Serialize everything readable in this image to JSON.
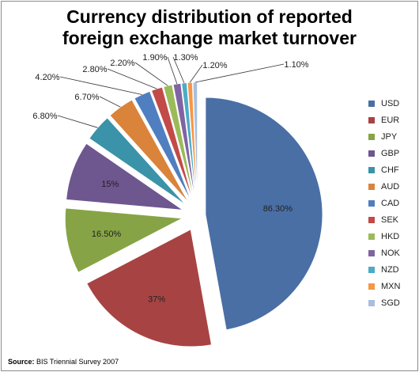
{
  "chart_data": {
    "type": "pie",
    "title_lines": [
      "Currency distribution of reported",
      "foreign exchange market turnover"
    ],
    "slices": [
      {
        "name": "USD",
        "value": 86.3,
        "label": "86.30%",
        "color": "#4A6FA5"
      },
      {
        "name": "EUR",
        "value": 37,
        "label": "37%",
        "color": "#A84343"
      },
      {
        "name": "JPY",
        "value": 16.5,
        "label": "16.50%",
        "color": "#86A445"
      },
      {
        "name": "GBP",
        "value": 15,
        "label": "15%",
        "color": "#6E568F"
      },
      {
        "name": "CHF",
        "value": 6.8,
        "label": "6.80%",
        "color": "#3A93A8"
      },
      {
        "name": "AUD",
        "value": 6.7,
        "label": "6.70%",
        "color": "#D9843A"
      },
      {
        "name": "CAD",
        "value": 4.2,
        "label": "4.20%",
        "color": "#4F7FC0"
      },
      {
        "name": "SEK",
        "value": 2.8,
        "label": "2.80%",
        "color": "#C24A47"
      },
      {
        "name": "HKD",
        "value": 2.2,
        "label": "2.20%",
        "color": "#9BBB59"
      },
      {
        "name": "NOK",
        "value": 1.9,
        "label": "1.90%",
        "color": "#8064A2"
      },
      {
        "name": "NZD",
        "value": 1.3,
        "label": "1.30%",
        "color": "#4BACC6"
      },
      {
        "name": "MXN",
        "value": 1.2,
        "label": "1.20%",
        "color": "#F79646"
      },
      {
        "name": "SGD",
        "value": 1.1,
        "label": "1.10%",
        "color": "#A9BEDC"
      }
    ],
    "legend_position": "right"
  },
  "source": {
    "label": "Source:",
    "text": " BIS Triennial Survey 2007"
  }
}
